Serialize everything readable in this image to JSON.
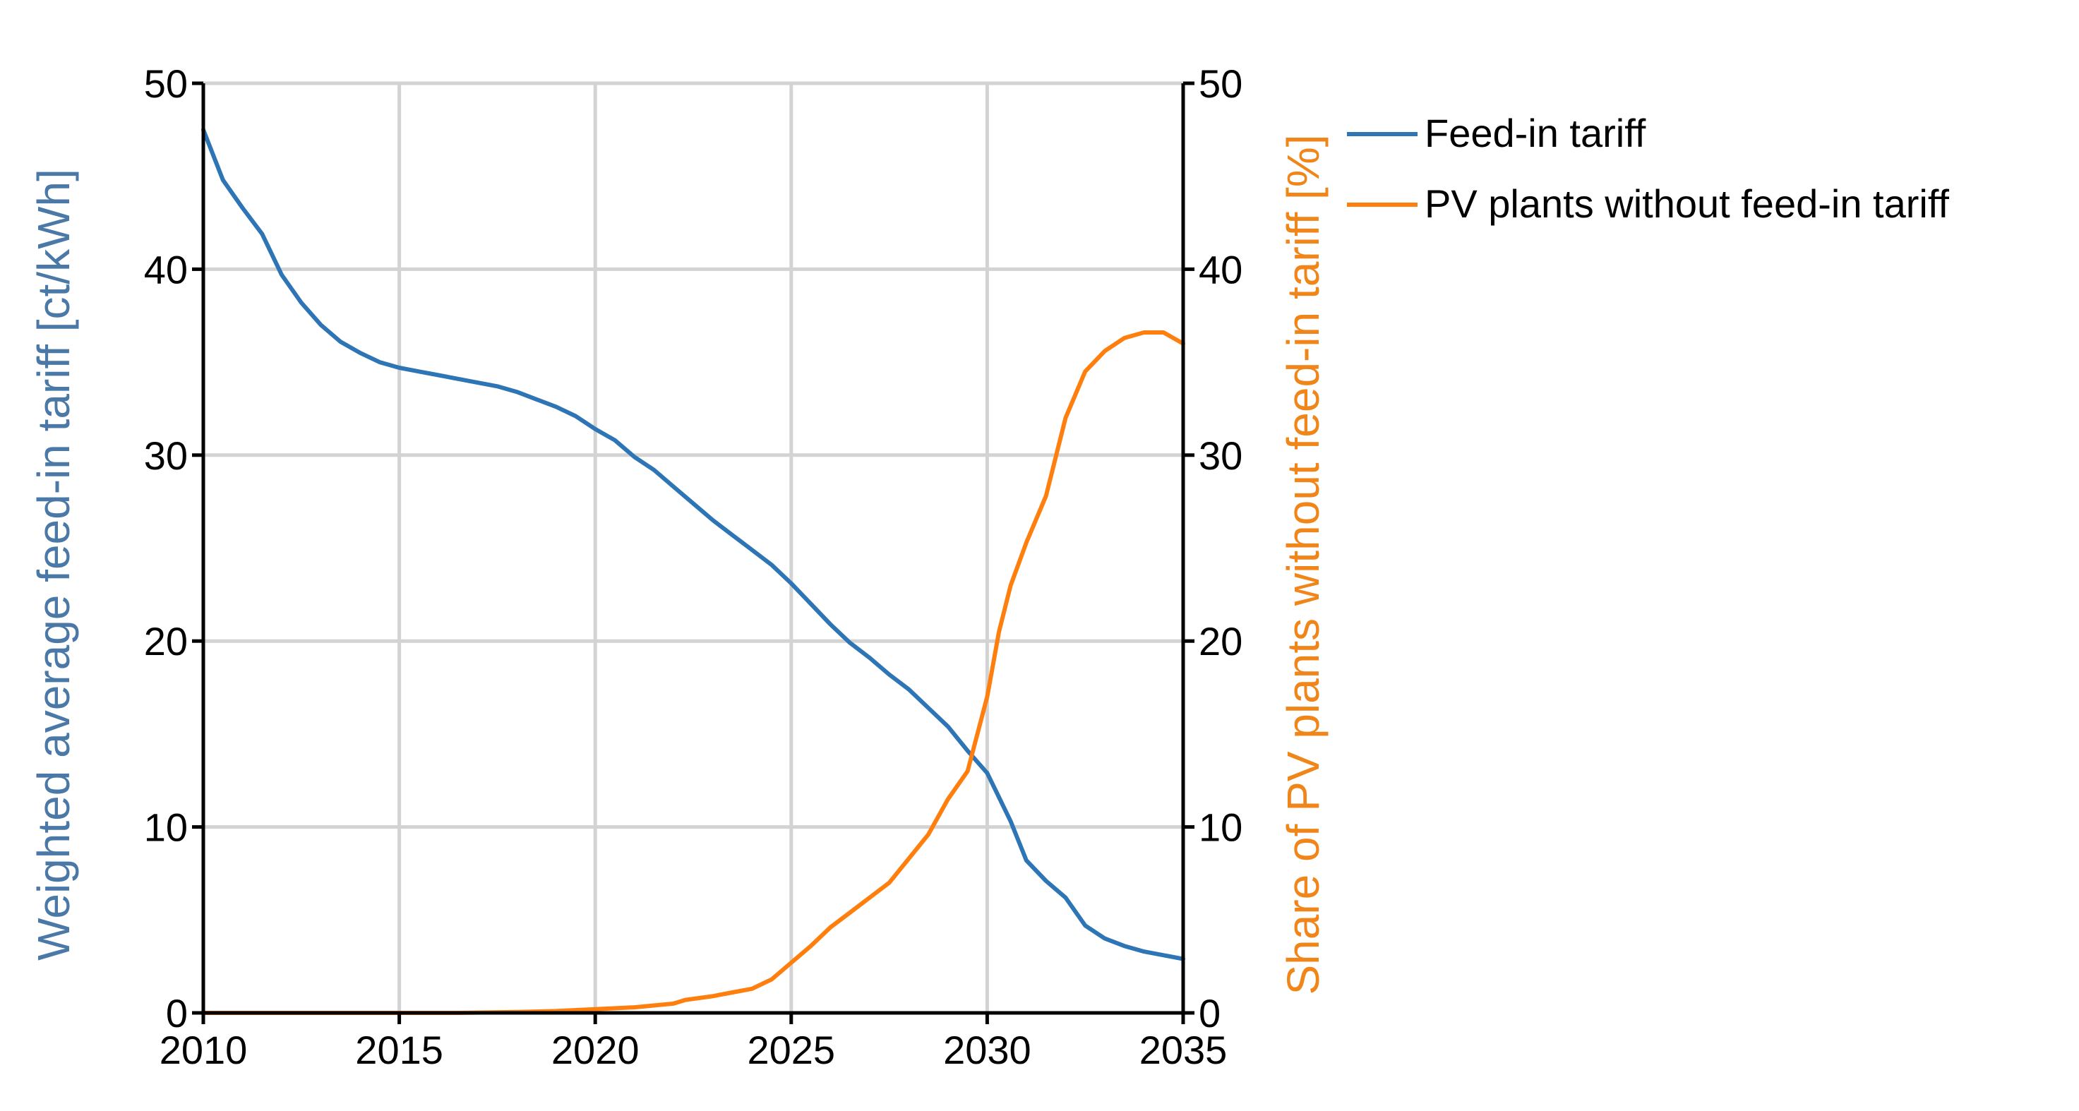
{
  "chart_data": {
    "type": "line",
    "title": "",
    "xlabel": "",
    "ylabel_left": "Weighted average feed-in tariff [ct/kWh]",
    "ylabel_right": "Share of PV plants without feed-in tariff [%]",
    "xlim": [
      2010,
      2035
    ],
    "ylim_left": [
      0,
      50
    ],
    "ylim_right": [
      0,
      50
    ],
    "x_ticks": [
      2010,
      2015,
      2020,
      2025,
      2030,
      2035
    ],
    "y_ticks_left": [
      0,
      10,
      20,
      30,
      40,
      50
    ],
    "y_ticks_right": [
      0,
      10,
      20,
      30,
      40,
      50
    ],
    "grid": true,
    "legend_position": "top-right, outside plot",
    "colors": {
      "feed_in_tariff": "#2e75b6",
      "pv_share": "#ff7f0e",
      "left_axis_label": "#4a79a8",
      "right_axis_label": "#f0861a",
      "grid": "#d3d3d3",
      "axis": "#000000"
    },
    "series": [
      {
        "name": "Feed-in tariff",
        "axis": "left",
        "color_key": "feed_in_tariff",
        "points": [
          [
            2010.0,
            47.5
          ],
          [
            2010.5,
            44.8
          ],
          [
            2011.0,
            43.3
          ],
          [
            2011.5,
            41.9
          ],
          [
            2012.0,
            39.7
          ],
          [
            2012.5,
            38.2
          ],
          [
            2013.0,
            37.0
          ],
          [
            2013.5,
            36.1
          ],
          [
            2014.0,
            35.5
          ],
          [
            2014.5,
            35.0
          ],
          [
            2015.0,
            34.7
          ],
          [
            2015.5,
            34.5
          ],
          [
            2016.0,
            34.3
          ],
          [
            2016.5,
            34.1
          ],
          [
            2017.0,
            33.9
          ],
          [
            2017.5,
            33.7
          ],
          [
            2018.0,
            33.4
          ],
          [
            2018.5,
            33.0
          ],
          [
            2019.0,
            32.6
          ],
          [
            2019.5,
            32.1
          ],
          [
            2020.0,
            31.4
          ],
          [
            2020.5,
            30.8
          ],
          [
            2021.0,
            29.9
          ],
          [
            2021.5,
            29.2
          ],
          [
            2022.0,
            28.3
          ],
          [
            2022.5,
            27.4
          ],
          [
            2023.0,
            26.5
          ],
          [
            2023.5,
            25.7
          ],
          [
            2024.0,
            24.9
          ],
          [
            2024.5,
            24.1
          ],
          [
            2025.0,
            23.1
          ],
          [
            2025.5,
            22.0
          ],
          [
            2026.0,
            20.9
          ],
          [
            2026.5,
            19.9
          ],
          [
            2027.0,
            19.1
          ],
          [
            2027.5,
            18.2
          ],
          [
            2028.0,
            17.4
          ],
          [
            2028.5,
            16.4
          ],
          [
            2029.0,
            15.4
          ],
          [
            2029.5,
            14.1
          ],
          [
            2030.0,
            12.9
          ],
          [
            2030.3,
            11.6
          ],
          [
            2030.6,
            10.3
          ],
          [
            2031.0,
            8.2
          ],
          [
            2031.5,
            7.1
          ],
          [
            2032.0,
            6.2
          ],
          [
            2032.5,
            4.7
          ],
          [
            2033.0,
            4.0
          ],
          [
            2033.5,
            3.6
          ],
          [
            2034.0,
            3.3
          ],
          [
            2034.5,
            3.1
          ],
          [
            2035.0,
            2.9
          ]
        ]
      },
      {
        "name": "PV plants without feed-in tariff",
        "axis": "right",
        "color_key": "pv_share",
        "points": [
          [
            2010.0,
            0.0
          ],
          [
            2015.0,
            0.0
          ],
          [
            2016.5,
            0.0
          ],
          [
            2018.0,
            0.05
          ],
          [
            2019.0,
            0.1
          ],
          [
            2020.0,
            0.2
          ],
          [
            2021.0,
            0.3
          ],
          [
            2022.0,
            0.5
          ],
          [
            2022.3,
            0.7
          ],
          [
            2023.0,
            0.9
          ],
          [
            2023.5,
            1.1
          ],
          [
            2024.0,
            1.3
          ],
          [
            2024.5,
            1.8
          ],
          [
            2025.0,
            2.7
          ],
          [
            2025.5,
            3.6
          ],
          [
            2026.0,
            4.6
          ],
          [
            2026.5,
            5.4
          ],
          [
            2027.0,
            6.2
          ],
          [
            2027.5,
            7.0
          ],
          [
            2028.0,
            8.3
          ],
          [
            2028.5,
            9.6
          ],
          [
            2029.0,
            11.5
          ],
          [
            2029.5,
            13.0
          ],
          [
            2030.0,
            17.0
          ],
          [
            2030.3,
            20.5
          ],
          [
            2030.6,
            23.0
          ],
          [
            2031.0,
            25.3
          ],
          [
            2031.5,
            27.8
          ],
          [
            2032.0,
            32.0
          ],
          [
            2032.5,
            34.5
          ],
          [
            2033.0,
            35.6
          ],
          [
            2033.5,
            36.3
          ],
          [
            2034.0,
            36.6
          ],
          [
            2034.5,
            36.6
          ],
          [
            2035.0,
            36.0
          ]
        ]
      }
    ]
  }
}
